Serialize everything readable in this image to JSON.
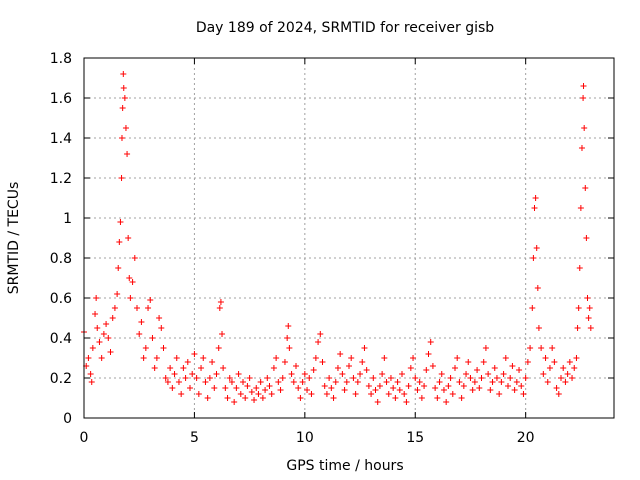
{
  "chart_data": {
    "type": "scatter",
    "title": "Day 189 of 2024, SRMTID for receiver gisb",
    "xlabel": "GPS time / hours",
    "ylabel": "SRMTID / TECUs",
    "xlim": [
      0,
      24
    ],
    "ylim": [
      0,
      1.8
    ],
    "xticks": [
      0,
      5,
      10,
      15,
      20
    ],
    "xtick_labels": [
      "0",
      "5",
      "10",
      "15",
      "20"
    ],
    "yticks": [
      0,
      0.2,
      0.4,
      0.6,
      0.8,
      1.0,
      1.2,
      1.4,
      1.6,
      1.8
    ],
    "ytick_labels": [
      "0",
      "0.2",
      "0.4",
      "0.6",
      "0.8",
      "1",
      "1.2",
      "1.4",
      "1.6",
      "1.8"
    ],
    "grid": true,
    "marker": "+",
    "marker_color": "#ff0000",
    "series": [
      {
        "name": "SRMTID",
        "points": [
          [
            0.0,
            0.43
          ],
          [
            0.1,
            0.26
          ],
          [
            0.2,
            0.3
          ],
          [
            0.3,
            0.22
          ],
          [
            0.35,
            0.18
          ],
          [
            0.4,
            0.35
          ],
          [
            0.5,
            0.52
          ],
          [
            0.55,
            0.6
          ],
          [
            0.6,
            0.45
          ],
          [
            0.7,
            0.38
          ],
          [
            0.8,
            0.3
          ],
          [
            0.9,
            0.42
          ],
          [
            1.0,
            0.47
          ],
          [
            1.1,
            0.4
          ],
          [
            1.2,
            0.33
          ],
          [
            1.3,
            0.5
          ],
          [
            1.4,
            0.55
          ],
          [
            1.5,
            0.62
          ],
          [
            1.55,
            0.75
          ],
          [
            1.6,
            0.88
          ],
          [
            1.65,
            0.98
          ],
          [
            1.7,
            1.2
          ],
          [
            1.72,
            1.4
          ],
          [
            1.75,
            1.55
          ],
          [
            1.78,
            1.72
          ],
          [
            1.8,
            1.65
          ],
          [
            1.85,
            1.6
          ],
          [
            1.9,
            1.45
          ],
          [
            1.95,
            1.32
          ],
          [
            2.0,
            0.9
          ],
          [
            2.05,
            0.7
          ],
          [
            2.1,
            0.6
          ],
          [
            2.2,
            0.68
          ],
          [
            2.3,
            0.8
          ],
          [
            2.4,
            0.55
          ],
          [
            2.5,
            0.42
          ],
          [
            2.6,
            0.48
          ],
          [
            2.7,
            0.3
          ],
          [
            2.8,
            0.35
          ],
          [
            2.9,
            0.55
          ],
          [
            3.0,
            0.59
          ],
          [
            3.1,
            0.4
          ],
          [
            3.2,
            0.25
          ],
          [
            3.3,
            0.3
          ],
          [
            3.4,
            0.5
          ],
          [
            3.5,
            0.45
          ],
          [
            3.6,
            0.35
          ],
          [
            3.7,
            0.2
          ],
          [
            3.8,
            0.18
          ],
          [
            3.9,
            0.25
          ],
          [
            4.0,
            0.15
          ],
          [
            4.1,
            0.22
          ],
          [
            4.2,
            0.3
          ],
          [
            4.3,
            0.18
          ],
          [
            4.4,
            0.12
          ],
          [
            4.5,
            0.25
          ],
          [
            4.6,
            0.2
          ],
          [
            4.7,
            0.28
          ],
          [
            4.8,
            0.15
          ],
          [
            4.9,
            0.22
          ],
          [
            5.0,
            0.32
          ],
          [
            5.1,
            0.2
          ],
          [
            5.2,
            0.12
          ],
          [
            5.3,
            0.25
          ],
          [
            5.4,
            0.3
          ],
          [
            5.5,
            0.18
          ],
          [
            5.6,
            0.1
          ],
          [
            5.7,
            0.2
          ],
          [
            5.8,
            0.28
          ],
          [
            5.9,
            0.15
          ],
          [
            6.0,
            0.22
          ],
          [
            6.1,
            0.35
          ],
          [
            6.15,
            0.55
          ],
          [
            6.2,
            0.58
          ],
          [
            6.25,
            0.42
          ],
          [
            6.3,
            0.25
          ],
          [
            6.4,
            0.15
          ],
          [
            6.5,
            0.1
          ],
          [
            6.6,
            0.2
          ],
          [
            6.7,
            0.18
          ],
          [
            6.8,
            0.08
          ],
          [
            6.9,
            0.15
          ],
          [
            7.0,
            0.22
          ],
          [
            7.1,
            0.12
          ],
          [
            7.2,
            0.18
          ],
          [
            7.3,
            0.1
          ],
          [
            7.4,
            0.16
          ],
          [
            7.5,
            0.2
          ],
          [
            7.6,
            0.13
          ],
          [
            7.7,
            0.09
          ],
          [
            7.8,
            0.15
          ],
          [
            7.9,
            0.12
          ],
          [
            8.0,
            0.18
          ],
          [
            8.1,
            0.1
          ],
          [
            8.2,
            0.14
          ],
          [
            8.3,
            0.2
          ],
          [
            8.4,
            0.16
          ],
          [
            8.5,
            0.12
          ],
          [
            8.6,
            0.25
          ],
          [
            8.7,
            0.3
          ],
          [
            8.8,
            0.18
          ],
          [
            8.9,
            0.14
          ],
          [
            9.0,
            0.2
          ],
          [
            9.1,
            0.28
          ],
          [
            9.2,
            0.4
          ],
          [
            9.25,
            0.46
          ],
          [
            9.3,
            0.35
          ],
          [
            9.4,
            0.22
          ],
          [
            9.5,
            0.18
          ],
          [
            9.6,
            0.26
          ],
          [
            9.7,
            0.15
          ],
          [
            9.8,
            0.1
          ],
          [
            9.9,
            0.18
          ],
          [
            10.0,
            0.22
          ],
          [
            10.1,
            0.14
          ],
          [
            10.2,
            0.2
          ],
          [
            10.3,
            0.12
          ],
          [
            10.4,
            0.24
          ],
          [
            10.5,
            0.3
          ],
          [
            10.6,
            0.38
          ],
          [
            10.7,
            0.42
          ],
          [
            10.8,
            0.28
          ],
          [
            10.9,
            0.16
          ],
          [
            11.0,
            0.12
          ],
          [
            11.1,
            0.2
          ],
          [
            11.2,
            0.15
          ],
          [
            11.3,
            0.1
          ],
          [
            11.4,
            0.18
          ],
          [
            11.5,
            0.25
          ],
          [
            11.6,
            0.32
          ],
          [
            11.7,
            0.22
          ],
          [
            11.8,
            0.14
          ],
          [
            11.9,
            0.18
          ],
          [
            12.0,
            0.26
          ],
          [
            12.1,
            0.3
          ],
          [
            12.2,
            0.2
          ],
          [
            12.3,
            0.12
          ],
          [
            12.4,
            0.18
          ],
          [
            12.5,
            0.22
          ],
          [
            12.6,
            0.28
          ],
          [
            12.7,
            0.35
          ],
          [
            12.8,
            0.24
          ],
          [
            12.9,
            0.16
          ],
          [
            13.0,
            0.12
          ],
          [
            13.1,
            0.2
          ],
          [
            13.2,
            0.14
          ],
          [
            13.3,
            0.08
          ],
          [
            13.4,
            0.16
          ],
          [
            13.5,
            0.22
          ],
          [
            13.6,
            0.3
          ],
          [
            13.7,
            0.18
          ],
          [
            13.8,
            0.12
          ],
          [
            13.9,
            0.2
          ],
          [
            14.0,
            0.15
          ],
          [
            14.1,
            0.1
          ],
          [
            14.2,
            0.18
          ],
          [
            14.3,
            0.14
          ],
          [
            14.4,
            0.22
          ],
          [
            14.5,
            0.12
          ],
          [
            14.6,
            0.08
          ],
          [
            14.7,
            0.16
          ],
          [
            14.8,
            0.25
          ],
          [
            14.9,
            0.3
          ],
          [
            15.0,
            0.2
          ],
          [
            15.1,
            0.14
          ],
          [
            15.2,
            0.18
          ],
          [
            15.3,
            0.1
          ],
          [
            15.4,
            0.16
          ],
          [
            15.5,
            0.24
          ],
          [
            15.6,
            0.32
          ],
          [
            15.7,
            0.38
          ],
          [
            15.8,
            0.26
          ],
          [
            15.9,
            0.15
          ],
          [
            16.0,
            0.1
          ],
          [
            16.1,
            0.18
          ],
          [
            16.2,
            0.22
          ],
          [
            16.3,
            0.14
          ],
          [
            16.4,
            0.08
          ],
          [
            16.5,
            0.16
          ],
          [
            16.6,
            0.2
          ],
          [
            16.7,
            0.12
          ],
          [
            16.8,
            0.25
          ],
          [
            16.9,
            0.3
          ],
          [
            17.0,
            0.18
          ],
          [
            17.1,
            0.1
          ],
          [
            17.2,
            0.16
          ],
          [
            17.3,
            0.22
          ],
          [
            17.4,
            0.28
          ],
          [
            17.5,
            0.2
          ],
          [
            17.6,
            0.14
          ],
          [
            17.7,
            0.18
          ],
          [
            17.8,
            0.24
          ],
          [
            17.9,
            0.15
          ],
          [
            18.0,
            0.2
          ],
          [
            18.1,
            0.28
          ],
          [
            18.2,
            0.35
          ],
          [
            18.3,
            0.22
          ],
          [
            18.4,
            0.14
          ],
          [
            18.5,
            0.18
          ],
          [
            18.6,
            0.25
          ],
          [
            18.7,
            0.2
          ],
          [
            18.8,
            0.12
          ],
          [
            18.9,
            0.18
          ],
          [
            19.0,
            0.22
          ],
          [
            19.1,
            0.3
          ],
          [
            19.2,
            0.16
          ],
          [
            19.3,
            0.2
          ],
          [
            19.4,
            0.26
          ],
          [
            19.5,
            0.14
          ],
          [
            19.6,
            0.18
          ],
          [
            19.7,
            0.24
          ],
          [
            19.8,
            0.16
          ],
          [
            19.9,
            0.12
          ],
          [
            20.0,
            0.2
          ],
          [
            20.1,
            0.28
          ],
          [
            20.2,
            0.35
          ],
          [
            20.3,
            0.55
          ],
          [
            20.35,
            0.8
          ],
          [
            20.4,
            1.05
          ],
          [
            20.45,
            1.1
          ],
          [
            20.5,
            0.85
          ],
          [
            20.55,
            0.65
          ],
          [
            20.6,
            0.45
          ],
          [
            20.7,
            0.35
          ],
          [
            20.8,
            0.22
          ],
          [
            20.9,
            0.3
          ],
          [
            21.0,
            0.18
          ],
          [
            21.1,
            0.25
          ],
          [
            21.2,
            0.35
          ],
          [
            21.3,
            0.28
          ],
          [
            21.4,
            0.15
          ],
          [
            21.5,
            0.12
          ],
          [
            21.6,
            0.2
          ],
          [
            21.7,
            0.25
          ],
          [
            21.8,
            0.18
          ],
          [
            21.9,
            0.22
          ],
          [
            22.0,
            0.28
          ],
          [
            22.1,
            0.2
          ],
          [
            22.2,
            0.25
          ],
          [
            22.3,
            0.3
          ],
          [
            22.35,
            0.45
          ],
          [
            22.4,
            0.55
          ],
          [
            22.45,
            0.75
          ],
          [
            22.5,
            1.05
          ],
          [
            22.55,
            1.35
          ],
          [
            22.6,
            1.6
          ],
          [
            22.62,
            1.66
          ],
          [
            22.65,
            1.45
          ],
          [
            22.7,
            1.15
          ],
          [
            22.75,
            0.9
          ],
          [
            22.8,
            0.6
          ],
          [
            22.85,
            0.5
          ],
          [
            22.9,
            0.55
          ],
          [
            22.95,
            0.45
          ]
        ]
      }
    ]
  }
}
